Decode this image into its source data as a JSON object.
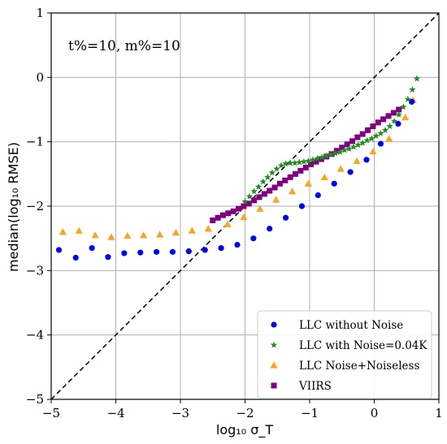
{
  "chart_data": {
    "type": "scatter",
    "xlabel": "log₁₀ σ_T",
    "ylabel": "median(log₁₀ RMSE)",
    "xlim": [
      -5,
      1
    ],
    "ylim": [
      -5,
      1
    ],
    "xticks": [
      "−5",
      "−4",
      "−3",
      "−2",
      "−1",
      "0",
      "1"
    ],
    "yticks": [
      "−5",
      "−4",
      "−3",
      "−2",
      "−1",
      "0",
      "1"
    ],
    "xtick_values": [
      -5,
      -4,
      -3,
      -2,
      -1,
      0,
      1
    ],
    "ytick_values": [
      -5,
      -4,
      -3,
      -2,
      -1,
      0,
      1
    ],
    "grid": true,
    "legend_position": "lower-right",
    "annotation": "t%=10, m%=10",
    "reference_line": {
      "style": "dashed",
      "color": "#000000",
      "points": [
        [
          -5,
          -5
        ],
        [
          1,
          1
        ]
      ]
    },
    "series": [
      {
        "name": "LLC without Noise",
        "marker": "circle",
        "color": "#0000ee",
        "points": [
          [
            -4.88,
            -2.68
          ],
          [
            -4.62,
            -2.8
          ],
          [
            -4.37,
            -2.65
          ],
          [
            -4.12,
            -2.79
          ],
          [
            -3.87,
            -2.73
          ],
          [
            -3.62,
            -2.72
          ],
          [
            -3.37,
            -2.71
          ],
          [
            -3.12,
            -2.71
          ],
          [
            -2.87,
            -2.7
          ],
          [
            -2.62,
            -2.68
          ],
          [
            -2.37,
            -2.65
          ],
          [
            -2.12,
            -2.6
          ],
          [
            -1.87,
            -2.5
          ],
          [
            -1.62,
            -2.35
          ],
          [
            -1.37,
            -2.18
          ],
          [
            -1.12,
            -2.0
          ],
          [
            -0.87,
            -1.83
          ],
          [
            -0.62,
            -1.65
          ],
          [
            -0.37,
            -1.47
          ],
          [
            -0.12,
            -1.28
          ],
          [
            0.1,
            -1.03
          ],
          [
            0.37,
            -0.72
          ],
          [
            0.58,
            -0.38
          ]
        ]
      },
      {
        "name": "LLC with Noise=0.04K",
        "marker": "star",
        "color": "#228b22",
        "points": [
          [
            -2.0,
            -1.93
          ],
          [
            -1.93,
            -1.85
          ],
          [
            -1.86,
            -1.77
          ],
          [
            -1.79,
            -1.7
          ],
          [
            -1.72,
            -1.62
          ],
          [
            -1.65,
            -1.55
          ],
          [
            -1.58,
            -1.48
          ],
          [
            -1.51,
            -1.42
          ],
          [
            -1.44,
            -1.37
          ],
          [
            -1.37,
            -1.34
          ],
          [
            -1.3,
            -1.33
          ],
          [
            -1.23,
            -1.33
          ],
          [
            -1.16,
            -1.32
          ],
          [
            -1.09,
            -1.31
          ],
          [
            -1.02,
            -1.3
          ],
          [
            -0.95,
            -1.28
          ],
          [
            -0.88,
            -1.26
          ],
          [
            -0.81,
            -1.24
          ],
          [
            -0.74,
            -1.22
          ],
          [
            -0.67,
            -1.2
          ],
          [
            -0.6,
            -1.18
          ],
          [
            -0.53,
            -1.16
          ],
          [
            -0.46,
            -1.13
          ],
          [
            -0.39,
            -1.11
          ],
          [
            -0.32,
            -1.08
          ],
          [
            -0.25,
            -1.05
          ],
          [
            -0.18,
            -1.02
          ],
          [
            -0.11,
            -0.98
          ],
          [
            -0.04,
            -0.95
          ],
          [
            0.03,
            -0.91
          ],
          [
            0.1,
            -0.87
          ],
          [
            0.17,
            -0.82
          ],
          [
            0.24,
            -0.76
          ],
          [
            0.31,
            -0.68
          ],
          [
            0.38,
            -0.58
          ],
          [
            0.45,
            -0.46
          ],
          [
            0.52,
            -0.34
          ],
          [
            0.59,
            -0.19
          ],
          [
            0.66,
            -0.02
          ]
        ]
      },
      {
        "name": "LLC Noise+Noiseless",
        "marker": "triangle",
        "color": "#f5a623",
        "points": [
          [
            -4.82,
            -2.4
          ],
          [
            -4.57,
            -2.38
          ],
          [
            -4.32,
            -2.45
          ],
          [
            -4.07,
            -2.48
          ],
          [
            -3.82,
            -2.46
          ],
          [
            -3.57,
            -2.45
          ],
          [
            -3.32,
            -2.44
          ],
          [
            -3.07,
            -2.41
          ],
          [
            -2.82,
            -2.38
          ],
          [
            -2.57,
            -2.35
          ],
          [
            -2.27,
            -2.28
          ],
          [
            -2.02,
            -2.17
          ],
          [
            -1.77,
            -2.04
          ],
          [
            -1.52,
            -1.9
          ],
          [
            -1.27,
            -1.77
          ],
          [
            -1.02,
            -1.65
          ],
          [
            -0.77,
            -1.55
          ],
          [
            -0.52,
            -1.42
          ],
          [
            -0.27,
            -1.3
          ],
          [
            -0.02,
            -1.15
          ],
          [
            0.23,
            -0.95
          ],
          [
            0.48,
            -0.62
          ],
          [
            0.6,
            -0.35
          ]
        ]
      },
      {
        "name": "VIIRS",
        "marker": "square",
        "color": "#800080",
        "points": [
          [
            -2.5,
            -2.22
          ],
          [
            -2.42,
            -2.18
          ],
          [
            -2.34,
            -2.14
          ],
          [
            -2.26,
            -2.11
          ],
          [
            -2.18,
            -2.08
          ],
          [
            -2.1,
            -2.04
          ],
          [
            -2.02,
            -2.0
          ],
          [
            -1.94,
            -1.96
          ],
          [
            -1.86,
            -1.91
          ],
          [
            -1.78,
            -1.86
          ],
          [
            -1.7,
            -1.81
          ],
          [
            -1.62,
            -1.76
          ],
          [
            -1.54,
            -1.71
          ],
          [
            -1.46,
            -1.65
          ],
          [
            -1.38,
            -1.6
          ],
          [
            -1.3,
            -1.55
          ],
          [
            -1.22,
            -1.5
          ],
          [
            -1.14,
            -1.45
          ],
          [
            -1.06,
            -1.4
          ],
          [
            -0.98,
            -1.35
          ],
          [
            -0.9,
            -1.31
          ],
          [
            -0.82,
            -1.27
          ],
          [
            -0.74,
            -1.23
          ],
          [
            -0.66,
            -1.19
          ],
          [
            -0.58,
            -1.14
          ],
          [
            -0.5,
            -1.09
          ],
          [
            -0.42,
            -1.04
          ],
          [
            -0.34,
            -0.99
          ],
          [
            -0.26,
            -0.93
          ],
          [
            -0.18,
            -0.88
          ],
          [
            -0.1,
            -0.82
          ],
          [
            -0.02,
            -0.76
          ],
          [
            0.06,
            -0.7
          ],
          [
            0.14,
            -0.65
          ],
          [
            0.22,
            -0.6
          ],
          [
            0.3,
            -0.55
          ],
          [
            0.38,
            -0.5
          ]
        ]
      }
    ]
  }
}
